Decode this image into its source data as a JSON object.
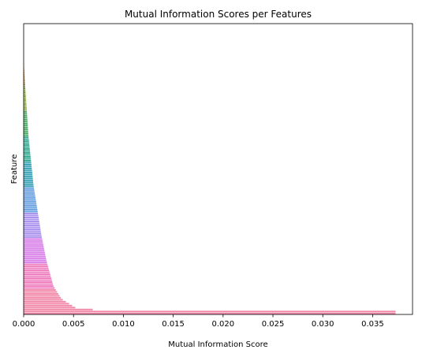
{
  "chart_data": {
    "type": "bar",
    "orientation": "horizontal",
    "title": "Mutual Information Scores per Features",
    "xlabel": "Mutual Information Score",
    "ylabel": "Feature",
    "xlim": [
      0,
      0.039
    ],
    "xticks": [
      0.0,
      0.005,
      0.01,
      0.015,
      0.02,
      0.025,
      0.03,
      0.035
    ],
    "xtick_labels": [
      "0.000",
      "0.005",
      "0.010",
      "0.015",
      "0.020",
      "0.025",
      "0.030",
      "0.035"
    ],
    "grid": false,
    "legend": "none",
    "sorted": "ascending",
    "bar_count": 130,
    "min_value": 0.0,
    "max_value": 0.0373,
    "curve": [
      [
        0.0,
        0.0
      ],
      [
        0.3,
        0.00048
      ],
      [
        0.5,
        0.001
      ],
      [
        0.7,
        0.0018
      ],
      [
        0.8,
        0.0023
      ],
      [
        0.9,
        0.003
      ],
      [
        0.95,
        0.0038
      ],
      [
        0.985,
        0.0052
      ],
      [
        0.992,
        0.0062
      ],
      [
        1.0,
        0.0373
      ]
    ],
    "palette": [
      "#be8f4a",
      "#8fb043",
      "#4aad63",
      "#36ab94",
      "#3aa3b7",
      "#6aa1e0",
      "#aa92ee",
      "#d880e8",
      "#ef7fbf",
      "#f18aa8"
    ]
  }
}
